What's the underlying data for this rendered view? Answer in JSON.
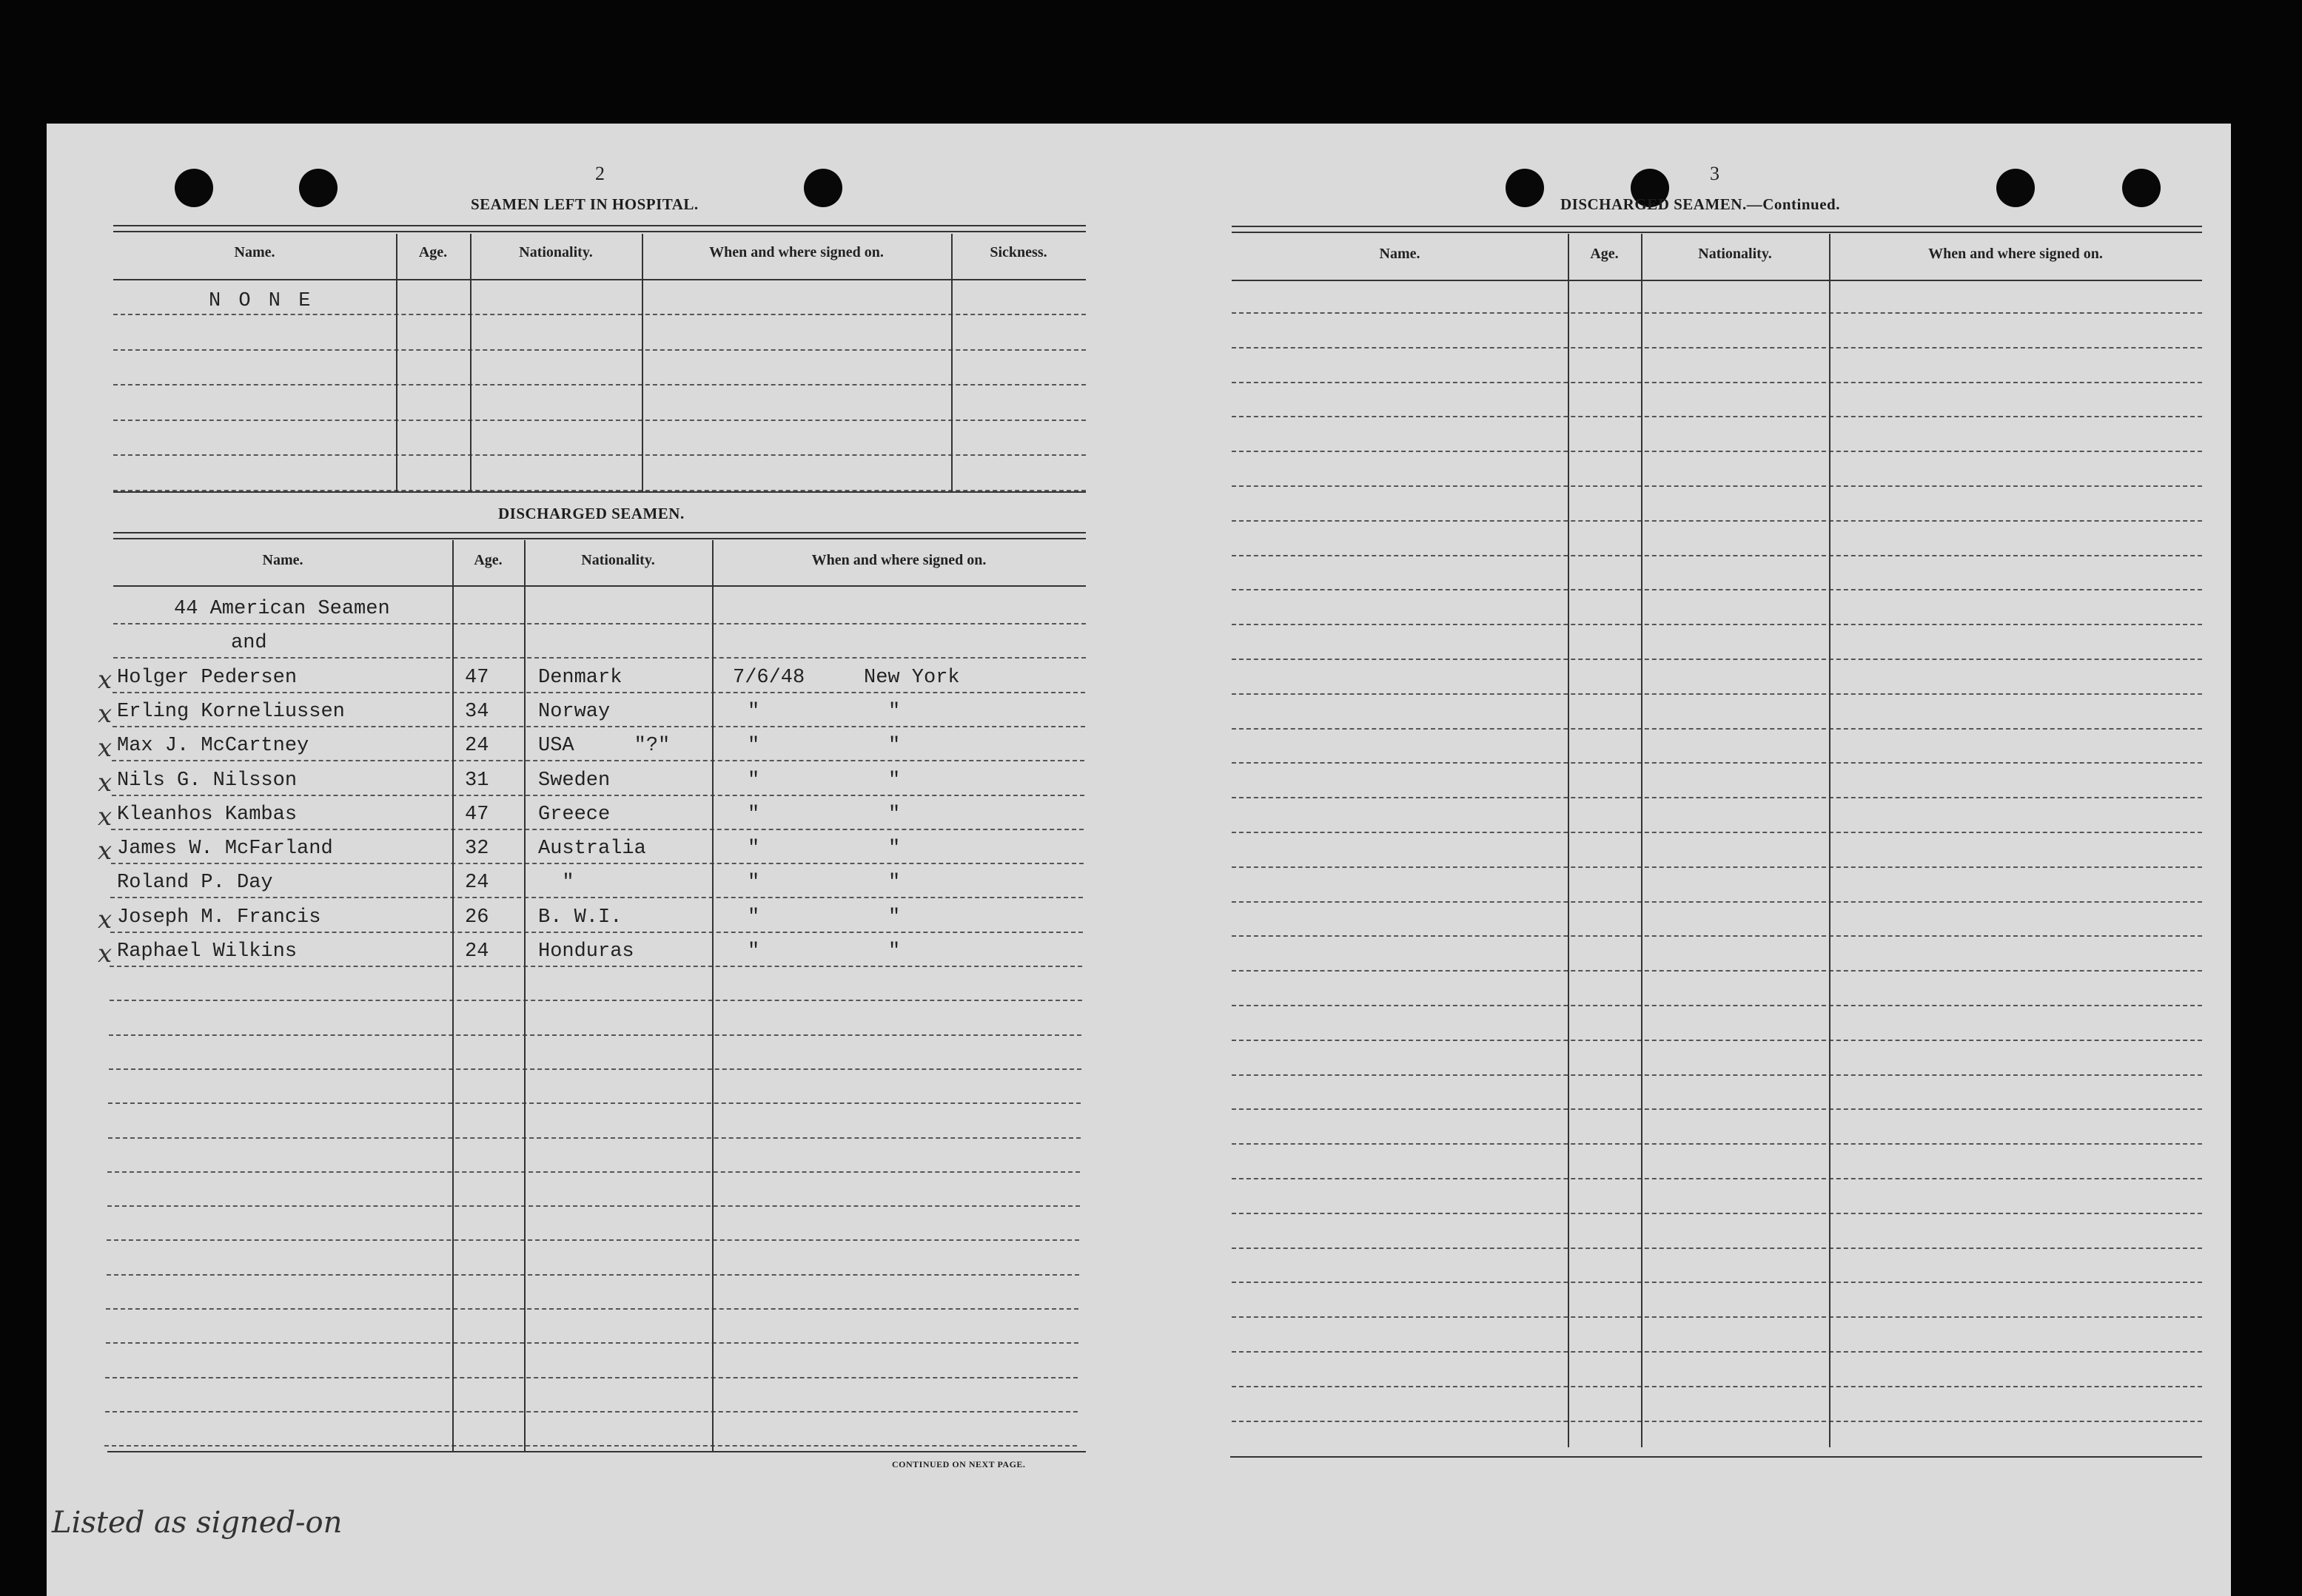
{
  "left_page": {
    "page_number": "2",
    "hospital_section": {
      "title": "SEAMEN LEFT IN HOSPITAL.",
      "columns": [
        "Name.",
        "Age.",
        "Nationality.",
        "When and where signed on.",
        "Sickness."
      ],
      "entry": "N O N E"
    },
    "discharged_section": {
      "title": "DISCHARGED SEAMEN.",
      "columns": [
        "Name.",
        "Age.",
        "Nationality.",
        "When and where signed on."
      ],
      "rows": [
        {
          "name": "44 American Seamen",
          "age": "",
          "nationality": "",
          "date": "",
          "place": "",
          "marked": false
        },
        {
          "name": "and",
          "age": "",
          "nationality": "",
          "date": "",
          "place": "",
          "marked": false
        },
        {
          "name": "Holger Pedersen",
          "age": "47",
          "nationality": "Denmark",
          "date": "7/6/48",
          "place": "New York",
          "marked": true
        },
        {
          "name": "Erling Korneliussen",
          "age": "34",
          "nationality": "Norway",
          "date": "\"",
          "place": "\"",
          "marked": true
        },
        {
          "name": "Max J. McCartney",
          "age": "24",
          "nationality": "USA     \"?\"",
          "date": "\"",
          "place": "\"",
          "marked": true
        },
        {
          "name": "Nils G. Nilsson",
          "age": "31",
          "nationality": "Sweden",
          "date": "\"",
          "place": "\"",
          "marked": true
        },
        {
          "name": "Kleanhos Kambas",
          "age": "47",
          "nationality": "Greece",
          "date": "\"",
          "place": "\"",
          "marked": true
        },
        {
          "name": "James W. McFarland",
          "age": "32",
          "nationality": "Australia",
          "date": "\"",
          "place": "\"",
          "marked": true
        },
        {
          "name": "Roland P. Day",
          "age": "24",
          "nationality": "  \"",
          "date": "\"",
          "place": "\"",
          "marked": false
        },
        {
          "name": "Joseph M. Francis",
          "age": "26",
          "nationality": "B. W.I.",
          "date": "\"",
          "place": "\"",
          "marked": true
        },
        {
          "name": "Raphael Wilkins",
          "age": "24",
          "nationality": "Honduras",
          "date": "\"",
          "place": "\"",
          "marked": true
        }
      ],
      "footer": "CONTINUED ON NEXT PAGE."
    },
    "handwritten_note": "Listed as signed-on"
  },
  "right_page": {
    "page_number": "3",
    "title": "DISCHARGED SEAMEN.—Continued.",
    "columns": [
      "Name.",
      "Age.",
      "Nationality.",
      "When and where signed on."
    ]
  }
}
